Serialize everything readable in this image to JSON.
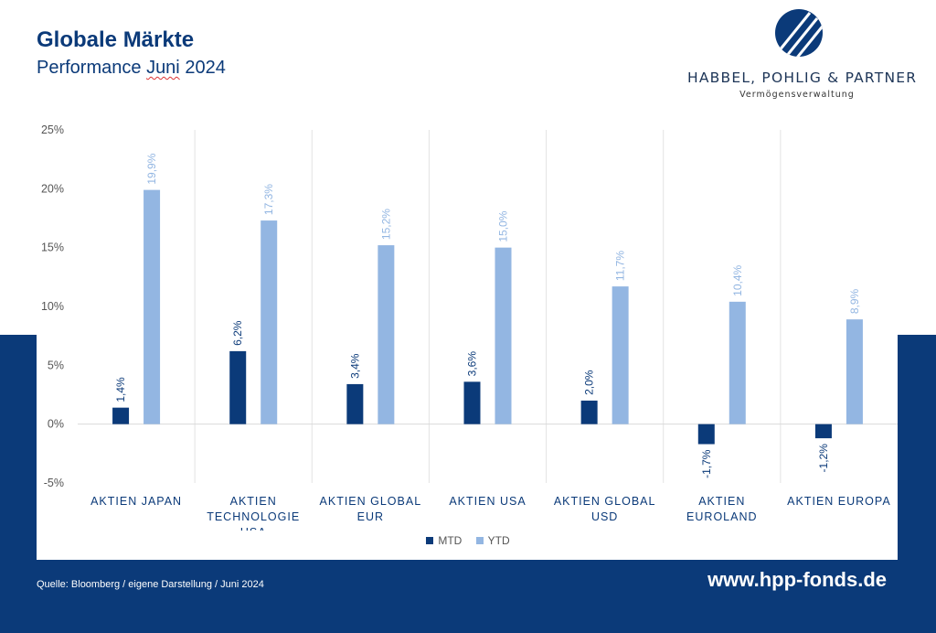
{
  "header": {
    "title": "Globale Märkte",
    "subtitle_prefix": "Performance ",
    "subtitle_month": "Juni",
    "subtitle_suffix": " 2024"
  },
  "logo": {
    "company": "HABBEL, POHLIG & PARTNER",
    "tagline": "Vermögensverwaltung",
    "icon": "hpp-emblem-icon"
  },
  "footer": {
    "source": "Quelle: Bloomberg / eigene Darstellung / Juni 2024",
    "url": "www.hpp-fonds.de"
  },
  "colors": {
    "navy": "#0b3a79",
    "mtd": "#0b3a79",
    "ytd": "#93b6e2",
    "mtd_label": "#0b3a79",
    "ytd_label": "#93b6e2"
  },
  "chart_data": {
    "type": "bar",
    "categories": [
      [
        "AKTIEN JAPAN"
      ],
      [
        "AKTIEN",
        "TECHNOLOGIE",
        "USA"
      ],
      [
        "AKTIEN GLOBAL",
        "EUR"
      ],
      [
        "AKTIEN USA"
      ],
      [
        "AKTIEN GLOBAL",
        "USD"
      ],
      [
        "AKTIEN",
        "EUROLAND"
      ],
      [
        "AKTIEN EUROPA"
      ]
    ],
    "series": [
      {
        "name": "MTD",
        "values": [
          1.4,
          6.2,
          3.4,
          3.6,
          2.0,
          -1.7,
          -1.2
        ],
        "labels": [
          "1,4%",
          "6,2%",
          "3,4%",
          "3,6%",
          "2,0%",
          "-1,7%",
          "-1,2%"
        ]
      },
      {
        "name": "YTD",
        "values": [
          19.9,
          17.3,
          15.2,
          15.0,
          11.7,
          10.4,
          8.9
        ],
        "labels": [
          "19,9%",
          "17,3%",
          "15,2%",
          "15,0%",
          "11,7%",
          "10,4%",
          "8,9%"
        ]
      }
    ],
    "ylim": [
      -5,
      25
    ],
    "yticks": [
      25,
      20,
      15,
      10,
      5,
      0,
      -5
    ],
    "ytick_labels": [
      "25%",
      "20%",
      "15%",
      "10%",
      "5%",
      "0%",
      "-5%"
    ],
    "grid": "vertical-separators",
    "legend": "bottom-center"
  }
}
